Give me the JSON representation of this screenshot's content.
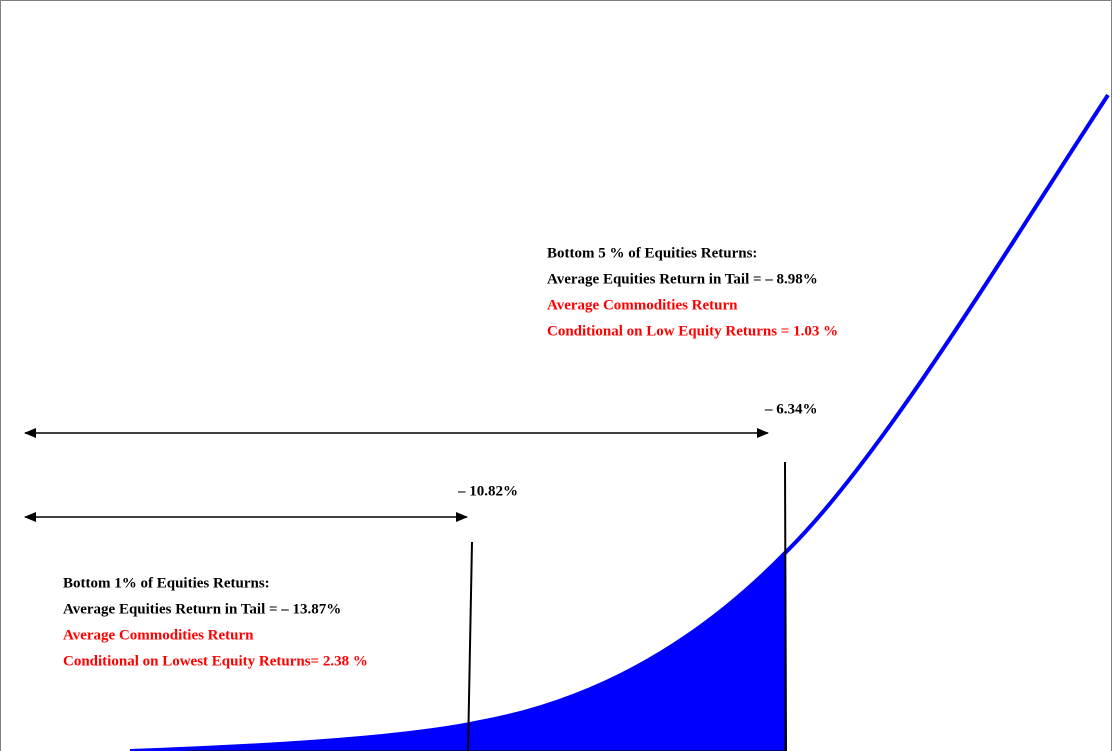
{
  "thresholds": {
    "bottom5": "– 6.34%",
    "bottom1": "– 10.82%"
  },
  "bottom5": {
    "lines": [
      "Bottom 5 % of Equities Returns:",
      "Average Equities Return in Tail =  – 8.98%",
      "Average Commodities Return",
      "Conditional on Low Equity Returns = 1.03 %"
    ]
  },
  "bottom1": {
    "lines": [
      "Bottom 1% of Equities Returns:",
      "Average Equities Return in Tail = – 13.87%",
      "Average Commodities Return",
      "Conditional on Lowest Equity Returns= 2.38 %"
    ]
  }
}
